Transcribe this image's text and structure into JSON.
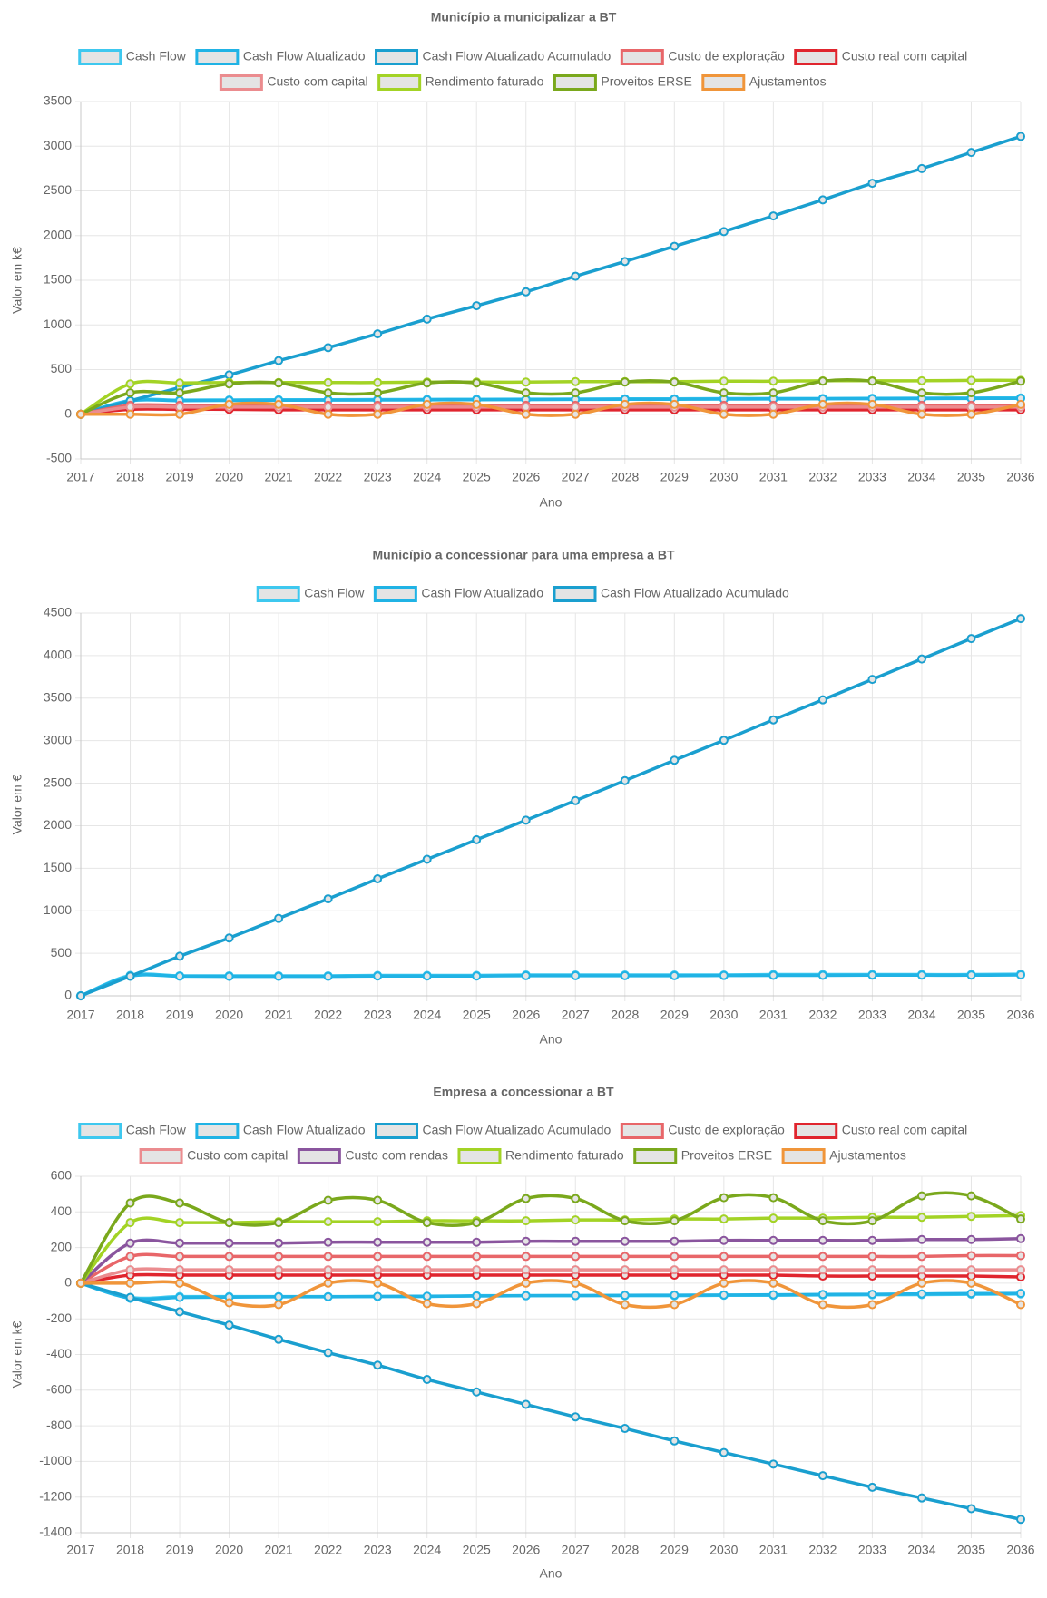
{
  "chart_data": [
    {
      "type": "line",
      "title": "Município a municipalizar a BT",
      "x_label": "Ano",
      "y_label": "Valor em k€",
      "categories": [
        2017,
        2018,
        2019,
        2020,
        2021,
        2022,
        2023,
        2024,
        2025,
        2026,
        2027,
        2028,
        2029,
        2030,
        2031,
        2032,
        2033,
        2034,
        2035,
        2036
      ],
      "ylim": [
        -500,
        3500
      ],
      "yticks": [
        -500,
        0,
        500,
        1000,
        1500,
        2000,
        2500,
        3000,
        3500
      ],
      "grid": true,
      "series": [
        {
          "name": "Cash Flow",
          "color": "#3ec8ef",
          "values": [
            0,
            155,
            158,
            160,
            162,
            163,
            165,
            166,
            168,
            169,
            170,
            172,
            173,
            175,
            176,
            177,
            179,
            180,
            182,
            183
          ]
        },
        {
          "name": "Cash Flow Atualizado",
          "color": "#20b3e5",
          "values": [
            0,
            150,
            152,
            155,
            157,
            158,
            160,
            161,
            163,
            164,
            166,
            167,
            168,
            170,
            171,
            173,
            174,
            175,
            177,
            178
          ]
        },
        {
          "name": "Cash Flow Atualizado Acumulado",
          "color": "#1a9fcf",
          "values": [
            0,
            150,
            300,
            440,
            600,
            745,
            900,
            1065,
            1215,
            1370,
            1545,
            1710,
            1880,
            2045,
            2220,
            2400,
            2585,
            2750,
            2930,
            3110
          ]
        },
        {
          "name": "Custo de exploração",
          "color": "#e86669",
          "values": [
            0,
            100,
            100,
            100,
            100,
            100,
            100,
            100,
            100,
            100,
            100,
            100,
            100,
            100,
            100,
            100,
            100,
            100,
            100,
            100
          ]
        },
        {
          "name": "Custo real com capital",
          "color": "#e0252e",
          "values": [
            0,
            55,
            55,
            55,
            50,
            50,
            50,
            50,
            50,
            50,
            50,
            50,
            50,
            50,
            50,
            50,
            50,
            50,
            50,
            50
          ]
        },
        {
          "name": "Custo com capital",
          "color": "#eb8c8f",
          "values": [
            0,
            80,
            80,
            80,
            80,
            80,
            80,
            80,
            80,
            80,
            80,
            80,
            80,
            80,
            80,
            80,
            80,
            80,
            80,
            80
          ]
        },
        {
          "name": "Rendimento faturado",
          "color": "#a3d325",
          "values": [
            0,
            340,
            350,
            355,
            355,
            355,
            355,
            360,
            360,
            360,
            365,
            365,
            365,
            370,
            370,
            375,
            375,
            375,
            380,
            380
          ]
        },
        {
          "name": "Proveitos ERSE",
          "color": "#7aa81c",
          "values": [
            0,
            240,
            240,
            340,
            350,
            240,
            240,
            350,
            350,
            240,
            240,
            360,
            360,
            240,
            240,
            370,
            370,
            240,
            240,
            370
          ]
        },
        {
          "name": "Ajustamentos",
          "color": "#f0953a",
          "values": [
            0,
            0,
            0,
            110,
            110,
            0,
            0,
            110,
            110,
            0,
            0,
            110,
            110,
            0,
            0,
            110,
            110,
            0,
            0,
            110
          ]
        }
      ]
    },
    {
      "type": "line",
      "title": "Município a concessionar para uma empresa a BT",
      "x_label": "Ano",
      "y_label": "Valor em €",
      "categories": [
        2017,
        2018,
        2019,
        2020,
        2021,
        2022,
        2023,
        2024,
        2025,
        2026,
        2027,
        2028,
        2029,
        2030,
        2031,
        2032,
        2033,
        2034,
        2035,
        2036
      ],
      "ylim": [
        0,
        4500
      ],
      "yticks": [
        0,
        500,
        1000,
        1500,
        2000,
        2500,
        3000,
        3500,
        4000,
        4500
      ],
      "grid": true,
      "series": [
        {
          "name": "Cash Flow",
          "color": "#3ec8ef",
          "values": [
            0,
            240,
            235,
            235,
            235,
            235,
            240,
            240,
            240,
            245,
            245,
            245,
            245,
            245,
            250,
            250,
            250,
            250,
            250,
            255
          ]
        },
        {
          "name": "Cash Flow Atualizado",
          "color": "#20b3e5",
          "values": [
            0,
            230,
            230,
            228,
            228,
            228,
            232,
            232,
            232,
            236,
            236,
            236,
            236,
            238,
            240,
            240,
            242,
            242,
            242,
            245
          ]
        },
        {
          "name": "Cash Flow Atualizado Acumulado",
          "color": "#1a9fcf",
          "values": [
            0,
            230,
            465,
            680,
            910,
            1140,
            1375,
            1605,
            1835,
            2065,
            2295,
            2530,
            2770,
            3005,
            3245,
            3480,
            3720,
            3960,
            4200,
            4435
          ]
        }
      ]
    },
    {
      "type": "line",
      "title": "Empresa a concessionar a BT",
      "x_label": "Ano",
      "y_label": "Valor em k€",
      "categories": [
        2017,
        2018,
        2019,
        2020,
        2021,
        2022,
        2023,
        2024,
        2025,
        2026,
        2027,
        2028,
        2029,
        2030,
        2031,
        2032,
        2033,
        2034,
        2035,
        2036
      ],
      "ylim": [
        -1400,
        600
      ],
      "yticks": [
        -1400,
        -1200,
        -1000,
        -800,
        -600,
        -400,
        -200,
        0,
        200,
        400,
        600
      ],
      "grid": true,
      "series": [
        {
          "name": "Cash Flow",
          "color": "#3ec8ef",
          "values": [
            0,
            -80,
            -75,
            -75,
            -75,
            -75,
            -75,
            -75,
            -70,
            -70,
            -70,
            -70,
            -70,
            -68,
            -68,
            -66,
            -65,
            -64,
            -62,
            -60
          ]
        },
        {
          "name": "Cash Flow Atualizado",
          "color": "#20b3e5",
          "values": [
            0,
            -85,
            -80,
            -78,
            -76,
            -76,
            -74,
            -73,
            -72,
            -70,
            -69,
            -68,
            -67,
            -66,
            -65,
            -63,
            -62,
            -60,
            -58,
            -57
          ]
        },
        {
          "name": "Cash Flow Atualizado Acumulado",
          "color": "#1a9fcf",
          "values": [
            0,
            -80,
            -160,
            -235,
            -315,
            -390,
            -460,
            -540,
            -610,
            -680,
            -750,
            -815,
            -885,
            -950,
            -1015,
            -1080,
            -1145,
            -1205,
            -1265,
            -1325
          ]
        },
        {
          "name": "Custo de exploração",
          "color": "#e86669",
          "values": [
            0,
            150,
            150,
            150,
            150,
            150,
            150,
            150,
            150,
            150,
            150,
            150,
            150,
            150,
            150,
            150,
            150,
            150,
            155,
            155
          ]
        },
        {
          "name": "Custo real com capital",
          "color": "#e0252e",
          "values": [
            0,
            45,
            45,
            45,
            45,
            45,
            45,
            45,
            45,
            45,
            45,
            45,
            45,
            45,
            45,
            40,
            40,
            40,
            40,
            35
          ]
        },
        {
          "name": "Custo com capital",
          "color": "#eb8c8f",
          "values": [
            0,
            75,
            75,
            75,
            75,
            75,
            75,
            75,
            75,
            75,
            75,
            75,
            75,
            75,
            75,
            75,
            75,
            75,
            75,
            75
          ]
        },
        {
          "name": "Custo com rendas",
          "color": "#8a559e",
          "values": [
            0,
            225,
            225,
            225,
            225,
            230,
            230,
            230,
            230,
            235,
            235,
            235,
            235,
            240,
            240,
            240,
            240,
            245,
            245,
            250
          ]
        },
        {
          "name": "Rendimento faturado",
          "color": "#a3d325",
          "values": [
            0,
            340,
            340,
            340,
            345,
            345,
            345,
            350,
            350,
            350,
            355,
            355,
            360,
            360,
            365,
            365,
            370,
            370,
            375,
            380
          ]
        },
        {
          "name": "Proveitos ERSE",
          "color": "#7aa81c",
          "values": [
            0,
            450,
            450,
            340,
            340,
            465,
            465,
            340,
            340,
            475,
            475,
            350,
            350,
            480,
            480,
            350,
            350,
            490,
            490,
            360
          ]
        },
        {
          "name": "Ajustamentos",
          "color": "#f0953a",
          "values": [
            0,
            0,
            0,
            -110,
            -120,
            0,
            0,
            -115,
            -115,
            0,
            0,
            -120,
            -120,
            0,
            0,
            -120,
            -120,
            0,
            0,
            -120
          ]
        }
      ]
    }
  ]
}
